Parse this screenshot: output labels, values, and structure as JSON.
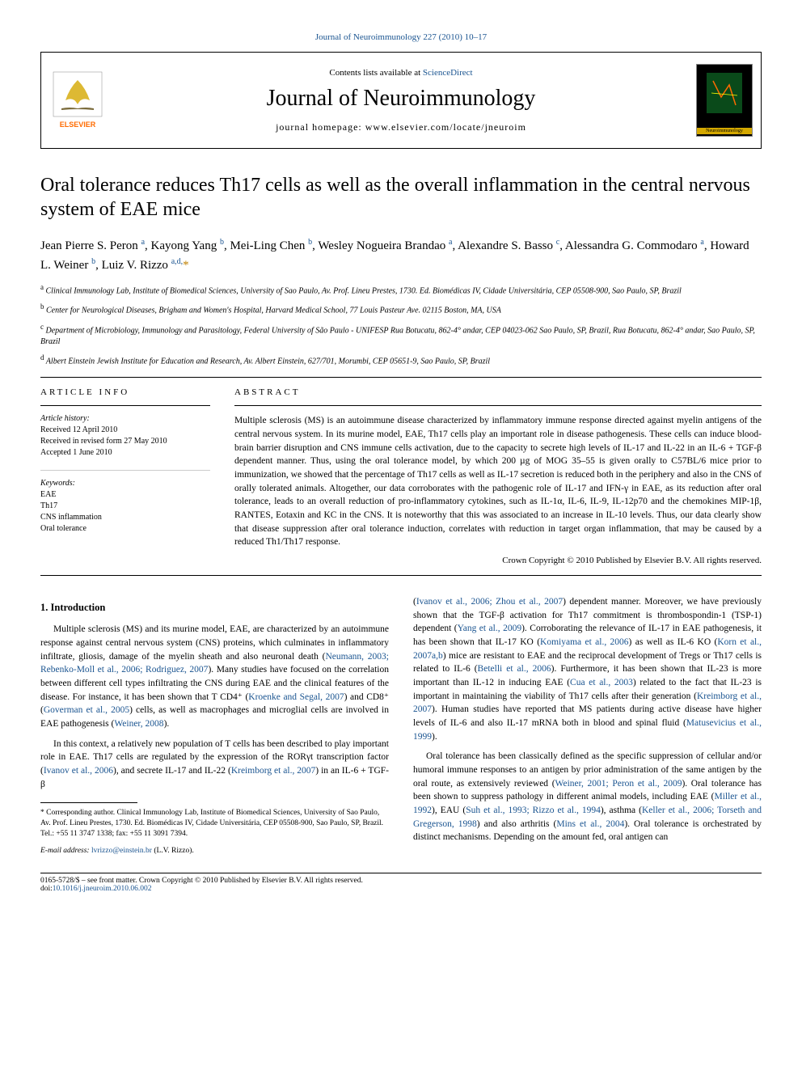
{
  "header": {
    "citation": "Journal of Neuroimmunology 227 (2010) 10–17",
    "contents_line_pre": "Contents lists available at ",
    "contents_line_link": "ScienceDirect",
    "journal_name": "Journal of Neuroimmunology",
    "homepage_line": "journal homepage: www.elsevier.com/locate/jneuroim",
    "cover_label": "Neuroimmunology"
  },
  "title": "Oral tolerance reduces Th17 cells as well as the overall inflammation in the central nervous system of EAE mice",
  "authors_html": "Jean Pierre S. Peron <sup>a</sup>, Kayong Yang <sup>b</sup>, Mei-Ling Chen <sup>b</sup>, Wesley Nogueira Brandao <sup>a</sup>, Alexandre S. Basso <sup>c</sup>, Alessandra G. Commodaro <sup>a</sup>, Howard L. Weiner <sup>b</sup>, Luiz V. Rizzo <sup>a,d,</sup><span class='star'>*</span>",
  "affiliations": {
    "a": "Clinical Immunology Lab, Institute of Biomedical Sciences, University of Sao Paulo, Av. Prof. Lineu Prestes, 1730. Ed. Biomédicas IV, Cidade Universitária, CEP 05508-900, Sao Paulo, SP, Brazil",
    "b": "Center for Neurological Diseases, Brigham and Women's Hospital, Harvard Medical School, 77 Louis Pasteur Ave. 02115 Boston, MA, USA",
    "c": "Department of Microbiology, Immunology and Parasitology, Federal University of São Paulo - UNIFESP Rua Botucatu, 862-4° andar, CEP 04023-062 Sao Paulo, SP, Brazil, Rua Botucatu, 862-4° andar, Sao Paulo, SP, Brazil",
    "d": "Albert Einstein Jewish Institute for Education and Research, Av. Albert Einstein, 627/701, Morumbi, CEP 05651-9, Sao Paulo, SP, Brazil"
  },
  "article_info": {
    "heading": "article info",
    "history_label": "Article history:",
    "received": "Received 12 April 2010",
    "revised": "Received in revised form 27 May 2010",
    "accepted": "Accepted 1 June 2010",
    "keywords_label": "Keywords:",
    "keywords": [
      "EAE",
      "Th17",
      "CNS inflammation",
      "Oral tolerance"
    ]
  },
  "abstract": {
    "heading": "abstract",
    "text": "Multiple sclerosis (MS) is an autoimmune disease characterized by inflammatory immune response directed against myelin antigens of the central nervous system. In its murine model, EAE, Th17 cells play an important role in disease pathogenesis. These cells can induce blood-brain barrier disruption and CNS immune cells activation, due to the capacity to secrete high levels of IL-17 and IL-22 in an IL-6 + TGF-β dependent manner. Thus, using the oral tolerance model, by which 200 µg of MOG 35–55 is given orally to C57BL/6 mice prior to immunization, we showed that the percentage of Th17 cells as well as IL-17 secretion is reduced both in the periphery and also in the CNS of orally tolerated animals. Altogether, our data corroborates with the pathogenic role of IL-17 and IFN-γ in EAE, as its reduction after oral tolerance, leads to an overall reduction of pro-inflammatory cytokines, such as IL-1α, IL-6, IL-9, IL-12p70 and the chemokines MIP-1β, RANTES, Eotaxin and KC in the CNS. It is noteworthy that this was associated to an increase in IL-10 levels. Thus, our data clearly show that disease suppression after oral tolerance induction, correlates with reduction in target organ inflammation, that may be caused by a reduced Th1/Th17 response.",
    "copyright": "Crown Copyright © 2010 Published by Elsevier B.V. All rights reserved."
  },
  "body": {
    "section_heading": "1. Introduction",
    "p1_pre": "Multiple sclerosis (MS) and its murine model, EAE, are characterized by an autoimmune response against central nervous system (CNS) proteins, which culminates in inflammatory infiltrate, gliosis, damage of the myelin sheath and also neuronal death (",
    "p1_ref1": "Neumann, 2003; Rebenko-Moll et al., 2006; Rodriguez, 2007",
    "p1_mid1": "). Many studies have focused on the correlation between different cell types infiltrating the CNS during EAE and the clinical features of the disease. For instance, it has been shown that T CD4⁺ (",
    "p1_ref2": "Kroenke and Segal, 2007",
    "p1_mid2": ") and CD8⁺ (",
    "p1_ref3": "Goverman et al., 2005",
    "p1_mid3": ") cells, as well as macrophages and microglial cells are involved in EAE pathogenesis (",
    "p1_ref4": "Weiner, 2008",
    "p1_end": ").",
    "p2_pre": "In this context, a relatively new population of T cells has been described to play important role in EAE. Th17 cells are regulated by the expression of the RORγt transcription factor (",
    "p2_ref1": "Ivanov et al., 2006",
    "p2_mid1": "), and secrete IL-17 and IL-22 (",
    "p2_ref2": "Kreimborg et al., 2007",
    "p2_mid2": ") in an IL-6 + TGF-β",
    "p3_pre": "(",
    "p3_ref1": "Ivanov et al., 2006; Zhou et al., 2007",
    "p3_mid1": ") dependent manner. Moreover, we have previously shown that the TGF-β activation for Th17 commitment is thrombospondin-1 (TSP-1) dependent (",
    "p3_ref2": "Yang et al., 2009",
    "p3_mid2": "). Corroborating the relevance of IL-17 in EAE pathogenesis, it has been shown that IL-17 KO (",
    "p3_ref3": "Komiyama et al., 2006",
    "p3_mid3": ") as well as IL-6 KO (",
    "p3_ref4": "Korn et al., 2007a,b",
    "p3_mid4": ") mice are resistant to EAE and the reciprocal development of Tregs or Th17 cells is related to IL-6 (",
    "p3_ref5": "Betelli et al., 2006",
    "p3_mid5": "). Furthermore, it has been shown that IL-23 is more important than IL-12 in inducing EAE (",
    "p3_ref6": "Cua et al., 2003",
    "p3_mid6": ") related to the fact that IL-23 is important in maintaining the viability of Th17 cells after their generation (",
    "p3_ref7": "Kreimborg et al., 2007",
    "p3_mid7": "). Human studies have reported that MS patients during active disease have higher levels of IL-6 and also IL-17 mRNA both in blood and spinal fluid (",
    "p3_ref8": "Matusevicius et al., 1999",
    "p3_end": ").",
    "p4_pre": "Oral tolerance has been classically defined as the specific suppression of cellular and/or humoral immune responses to an antigen by prior administration of the same antigen by the oral route, as extensively reviewed (",
    "p4_ref1": "Weiner, 2001; Peron et al., 2009",
    "p4_mid1": "). Oral tolerance has been shown to suppress pathology in different animal models, including EAE (",
    "p4_ref2": "Miller et al., 1992",
    "p4_mid2": "), EAU (",
    "p4_ref3": "Suh et al., 1993; Rizzo et al., 1994",
    "p4_mid3": "), asthma (",
    "p4_ref4": "Keller et al., 2006; Torseth and Gregerson, 1998",
    "p4_mid4": ") and also arthritis (",
    "p4_ref5": "Mins et al., 2004",
    "p4_mid5": "). Oral tolerance is orchestrated by distinct mechanisms. Depending on the amount fed, oral antigen can"
  },
  "corresponding": {
    "text": "* Corresponding author. Clinical Immunology Lab, Institute of Biomedical Sciences, University of Sao Paulo, Av. Prof. Lineu Prestes, 1730. Ed. Biomédicas IV, Cidade Universitária, CEP 05508-900, Sao Paulo, SP, Brazil. Tel.: +55 11 3747 1338; fax: +55 11 3091 7394.",
    "email_label": "E-mail address: ",
    "email": "lvrizzo@einstein.br",
    "email_suffix": " (L.V. Rizzo)."
  },
  "footer": {
    "line1": "0165-5728/$ – see front matter. Crown Copyright © 2010 Published by Elsevier B.V. All rights reserved.",
    "doi_pre": "doi:",
    "doi": "10.1016/j.jneuroim.2010.06.002"
  },
  "colors": {
    "link": "#1a5490",
    "star": "#c08000",
    "elsevier_orange": "#ff6b00",
    "elsevier_tree": "#d4a800"
  }
}
